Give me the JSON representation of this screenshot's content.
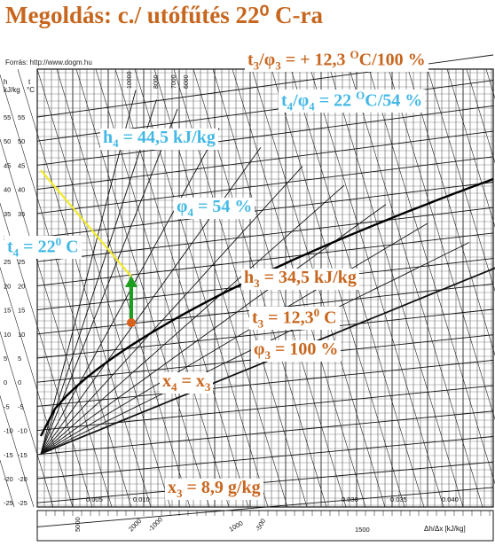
{
  "title": "Megoldás: c./ utófűtés 22⁰ C-ra",
  "source": "Forrás: http://www.dogm.hu",
  "axis": {
    "h_unit_top": "h",
    "h_unit": "kJ/kg",
    "t_unit_top": "t",
    "t_unit": "°C",
    "t_ticks": [
      "55",
      "50",
      "45",
      "40",
      "35",
      "30",
      "25",
      "20",
      "15",
      "10",
      "5",
      "0",
      "-5",
      "-10",
      "-15",
      "-20",
      "-25"
    ],
    "x_ticks": [
      "0.005",
      "0.010",
      "0.030",
      "0.035",
      "0.040"
    ],
    "x_axis_label": "Δh/Δx [kJ/kg]",
    "top_scale": [
      "10000",
      "8000",
      "7000",
      "6000"
    ],
    "bottom_scale": [
      "5000",
      "2000",
      "-1000",
      "1000",
      "1500",
      "-500"
    ]
  },
  "labels": {
    "t3_phi3_header": {
      "a": "t",
      "a_sub": "3",
      "b": "/φ",
      "b_sub": "3",
      "c": " = + 12,3 ",
      "c_sup": "O",
      "d": "C/100 %"
    },
    "t4_phi4_header": {
      "a": "t",
      "a_sub": "4",
      "b": "/φ",
      "b_sub": "4",
      "c": " =  22 ",
      "c_sup": "O",
      "d": "C/54 %"
    },
    "h4": {
      "a": "h",
      "a_sub": "4",
      "b": " =  44,5 kJ/kg"
    },
    "phi4": {
      "a": "φ",
      "a_sub": "4",
      "b": " =  54 %"
    },
    "t4": {
      "a": "t",
      "a_sub": "4",
      "b": " =  22",
      "b_sup": "0",
      "c": " C"
    },
    "h3": {
      "a": "h",
      "a_sub": "3",
      "b": " =  34,5 kJ/kg"
    },
    "t3": {
      "a": "t",
      "a_sub": "3",
      "b": " =  12,3",
      "b_sup": "0",
      "c": " C"
    },
    "phi3": {
      "a": "φ",
      "a_sub": "3",
      "b": " =  100 %"
    },
    "x4x3": {
      "a": "x",
      "a_sub": "4",
      "b": " =  x",
      "b_sub": "3"
    },
    "x3": {
      "a": "x",
      "a_sub": "3",
      "b": " =  8,9 g/kg"
    }
  },
  "colors": {
    "orange": "#c8661e",
    "blue": "#43b8e6",
    "arrow": "#1e9e1e",
    "enthalpy_line": "#f2ea2a",
    "point": "#d9601a"
  }
}
